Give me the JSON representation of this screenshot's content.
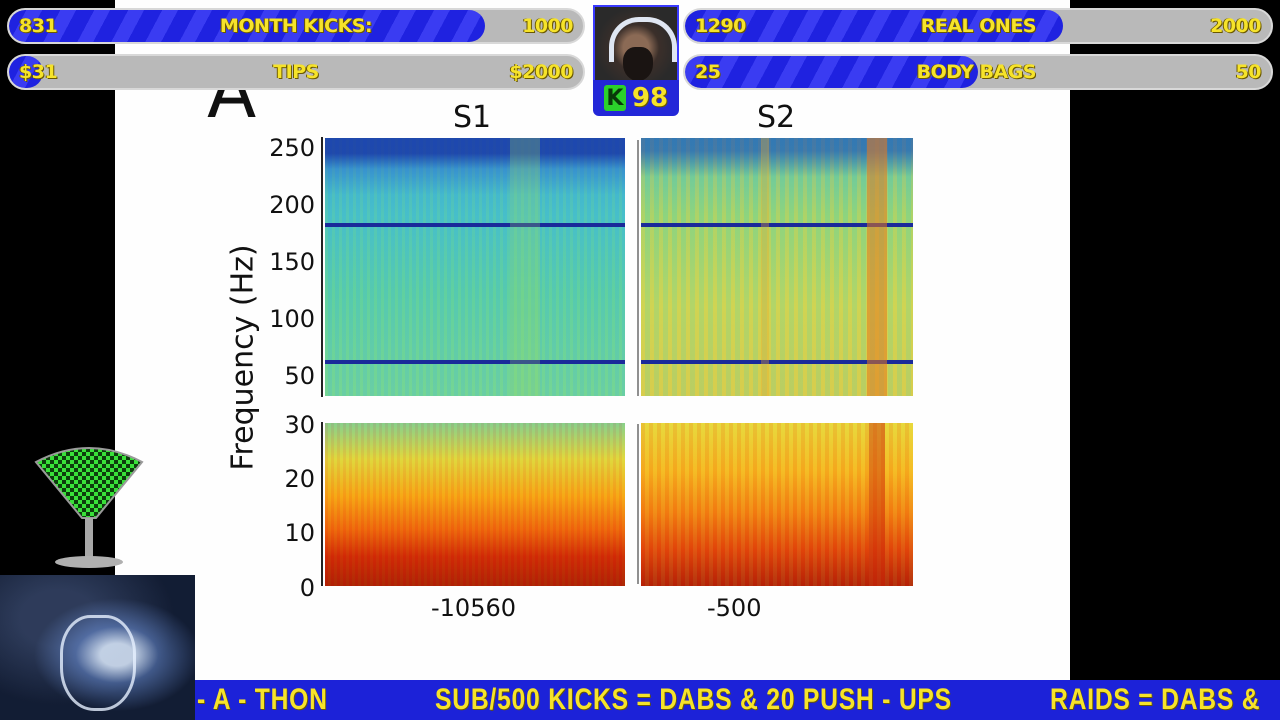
{
  "bars": {
    "month_kicks": {
      "label": "MONTH KICKS:",
      "current": "831",
      "goal": "1000",
      "progress": 0.83
    },
    "tips": {
      "label": "TIPS",
      "current": "$31",
      "goal": "$2000",
      "progress": 0.02
    },
    "real_ones": {
      "label": "REAL ONES",
      "current": "1290",
      "goal": "2000",
      "progress": 0.645
    },
    "body_bags": {
      "label": "BODY BAGS",
      "current": "25",
      "goal": "50",
      "progress": 0.5
    }
  },
  "kick_counter": {
    "badge": "K",
    "count": "98"
  },
  "slide": {
    "panel_letter": "A",
    "titles": [
      "S1",
      "S2"
    ],
    "y_label": "Frequency (Hz)",
    "y_ticks_top": [
      "250",
      "200",
      "150",
      "100",
      "50"
    ],
    "y_ticks_bottom": [
      "30",
      "20",
      "10",
      "0"
    ],
    "x_ticks": [
      "-10560",
      "-500"
    ]
  },
  "ticker": {
    "segments": [
      "- A - THON",
      "SUB/500 KICKS  =  DABS  &  20  PUSH - UPS",
      "RAIDS  =  DABS  &"
    ]
  },
  "colors": {
    "bar_fill": "#1f22e0",
    "bar_text": "#f6e32a",
    "ticker_bg": "#1c22d8",
    "kick_green": "#2bd12b"
  }
}
